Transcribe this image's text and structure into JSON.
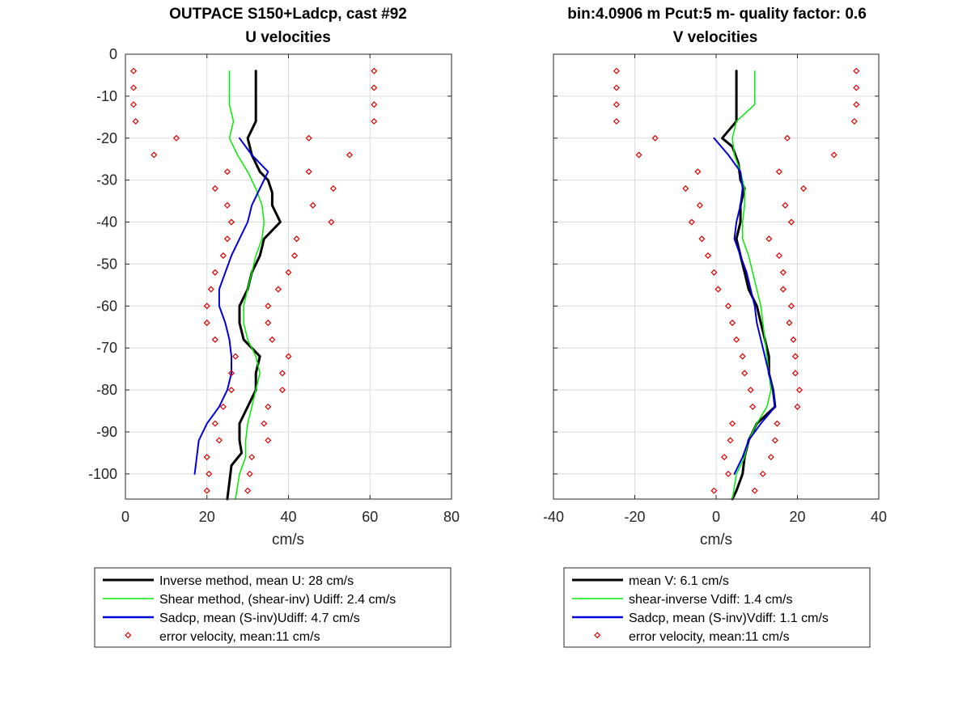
{
  "figure_title_left": "OUTPACE S150+Ladcp, cast #92",
  "figure_title_right": "bin:4.0906 m  Pcut:5 m- quality factor:  0.6",
  "colors": {
    "inverse": "#000000",
    "shear": "#00ee00",
    "sadcp": "#0000dd",
    "error": "#dd0000",
    "grid": "#dcdcdc",
    "axis": "#262626"
  },
  "chart_data": [
    {
      "type": "line",
      "title": "U velocities",
      "xlabel": "cm/s",
      "ylabel": "",
      "xlim": [
        0,
        80
      ],
      "ylim": [
        -106,
        0
      ],
      "xticks": [
        0,
        20,
        40,
        60,
        80
      ],
      "yticks": [
        0,
        -10,
        -20,
        -30,
        -40,
        -50,
        -60,
        -70,
        -80,
        -90,
        -100
      ],
      "grid": true,
      "legend_placement": "below",
      "legend": [
        "Inverse method, mean U:  28 cm/s",
        "Shear method, (shear-inv)  Udiff:  2.4 cm/s",
        "Sadcp, mean (S-inv)Udiff: 4.7 cm/s",
        "error velocity, mean:11 cm/s"
      ],
      "series": [
        {
          "key": "inverse",
          "points": [
            [
              32,
              -4
            ],
            [
              32,
              -16
            ],
            [
              30,
              -20
            ],
            [
              31,
              -24
            ],
            [
              33,
              -28
            ],
            [
              35,
              -30
            ],
            [
              36,
              -33
            ],
            [
              36,
              -36
            ],
            [
              38,
              -40
            ],
            [
              34,
              -44
            ],
            [
              33,
              -48
            ],
            [
              31,
              -52
            ],
            [
              30,
              -56
            ],
            [
              28,
              -60
            ],
            [
              28,
              -64
            ],
            [
              29,
              -68
            ],
            [
              33,
              -72
            ],
            [
              32,
              -76
            ],
            [
              32,
              -80
            ],
            [
              30,
              -84
            ],
            [
              28,
              -88
            ],
            [
              28,
              -92
            ],
            [
              28.5,
              -95
            ],
            [
              26,
              -98
            ],
            [
              25.5,
              -102
            ],
            [
              25,
              -106
            ]
          ]
        },
        {
          "key": "shear",
          "points": [
            [
              25.5,
              -4
            ],
            [
              25.5,
              -12
            ],
            [
              26.5,
              -16
            ],
            [
              25.5,
              -20
            ],
            [
              27.5,
              -24
            ],
            [
              30,
              -28
            ],
            [
              32,
              -32
            ],
            [
              33.5,
              -36
            ],
            [
              34,
              -40
            ],
            [
              33.5,
              -44
            ],
            [
              32,
              -48
            ],
            [
              31,
              -52
            ],
            [
              30,
              -56
            ],
            [
              29,
              -60
            ],
            [
              29,
              -64
            ],
            [
              30,
              -68
            ],
            [
              32,
              -72
            ],
            [
              33,
              -76
            ],
            [
              32,
              -80
            ],
            [
              31,
              -84
            ],
            [
              30,
              -88
            ],
            [
              29.5,
              -92
            ],
            [
              29.5,
              -96
            ],
            [
              28,
              -100
            ],
            [
              27,
              -106
            ]
          ]
        },
        {
          "key": "sadcp",
          "points": [
            [
              28,
              -20
            ],
            [
              31,
              -24
            ],
            [
              35,
              -28
            ],
            [
              33,
              -32
            ],
            [
              31,
              -36
            ],
            [
              30,
              -40
            ],
            [
              28,
              -44
            ],
            [
              26,
              -48
            ],
            [
              24.5,
              -52
            ],
            [
              23,
              -56
            ],
            [
              23,
              -60
            ],
            [
              24.5,
              -64
            ],
            [
              25.5,
              -68
            ],
            [
              26,
              -72
            ],
            [
              26,
              -76
            ],
            [
              25,
              -80
            ],
            [
              23,
              -84
            ],
            [
              20,
              -88
            ],
            [
              18,
              -92
            ],
            [
              17,
              -100
            ]
          ]
        },
        {
          "key": "error_low",
          "marker": "diamond",
          "points": [
            [
              2,
              -4
            ],
            [
              2,
              -8
            ],
            [
              2,
              -12
            ],
            [
              2.5,
              -16
            ],
            [
              12.5,
              -20
            ],
            [
              7,
              -24
            ],
            [
              25,
              -28
            ],
            [
              22,
              -32
            ],
            [
              25,
              -36
            ],
            [
              26,
              -40
            ],
            [
              25,
              -44
            ],
            [
              24,
              -48
            ],
            [
              22,
              -52
            ],
            [
              21,
              -56
            ],
            [
              20,
              -60
            ],
            [
              20,
              -64
            ],
            [
              22,
              -68
            ],
            [
              27,
              -72
            ],
            [
              26,
              -76
            ],
            [
              26,
              -80
            ],
            [
              24,
              -84
            ],
            [
              22,
              -88
            ],
            [
              23,
              -92
            ],
            [
              20,
              -96
            ],
            [
              20.5,
              -100
            ],
            [
              20,
              -104
            ]
          ]
        },
        {
          "key": "error_high",
          "marker": "diamond",
          "points": [
            [
              61,
              -4
            ],
            [
              61,
              -8
            ],
            [
              61,
              -12
            ],
            [
              61,
              -16
            ],
            [
              45,
              -20
            ],
            [
              55,
              -24
            ],
            [
              45,
              -28
            ],
            [
              51,
              -32
            ],
            [
              46,
              -36
            ],
            [
              50.5,
              -40
            ],
            [
              42,
              -44
            ],
            [
              41.5,
              -48
            ],
            [
              40,
              -52
            ],
            [
              37.5,
              -56
            ],
            [
              35,
              -60
            ],
            [
              35,
              -64
            ],
            [
              36,
              -68
            ],
            [
              40,
              -72
            ],
            [
              38.5,
              -76
            ],
            [
              38.5,
              -80
            ],
            [
              35,
              -84
            ],
            [
              34,
              -88
            ],
            [
              35,
              -92
            ],
            [
              31,
              -96
            ],
            [
              30.5,
              -100
            ],
            [
              30,
              -104
            ]
          ]
        }
      ]
    },
    {
      "type": "line",
      "title": "V velocities",
      "xlabel": "cm/s",
      "ylabel": "",
      "xlim": [
        -40,
        40
      ],
      "ylim": [
        -106,
        0
      ],
      "xticks": [
        -40,
        -20,
        0,
        20,
        40
      ],
      "yticks": [
        0,
        -10,
        -20,
        -30,
        -40,
        -50,
        -60,
        -70,
        -80,
        -90,
        -100
      ],
      "grid": true,
      "legend_placement": "below",
      "legend": [
        "mean V:  6.1 cm/s",
        "shear-inverse Vdiff:  1.4 cm/s",
        "Sadcp, mean (S-inv)Vdiff: 1.1 cm/s",
        "error velocity, mean:11 cm/s"
      ],
      "series": [
        {
          "key": "inverse",
          "points": [
            [
              5,
              -4
            ],
            [
              5,
              -16
            ],
            [
              1.5,
              -20
            ],
            [
              4,
              -22
            ],
            [
              5.5,
              -26
            ],
            [
              6,
              -30
            ],
            [
              7,
              -32
            ],
            [
              6,
              -36
            ],
            [
              6,
              -40
            ],
            [
              5,
              -44
            ],
            [
              6,
              -48
            ],
            [
              7,
              -52
            ],
            [
              8,
              -56
            ],
            [
              10,
              -60
            ],
            [
              11,
              -64
            ],
            [
              12,
              -68
            ],
            [
              13,
              -72
            ],
            [
              13,
              -76
            ],
            [
              14,
              -80
            ],
            [
              14.5,
              -84
            ],
            [
              10,
              -88
            ],
            [
              8,
              -92
            ],
            [
              7,
              -96
            ],
            [
              6.5,
              -100
            ],
            [
              5,
              -104
            ],
            [
              4,
              -106
            ]
          ]
        },
        {
          "key": "shear",
          "points": [
            [
              9.5,
              -4
            ],
            [
              9.5,
              -12
            ],
            [
              5,
              -16
            ],
            [
              4,
              -20
            ],
            [
              4.5,
              -24
            ],
            [
              6,
              -28
            ],
            [
              7,
              -32
            ],
            [
              7,
              -36
            ],
            [
              6.5,
              -40
            ],
            [
              6.5,
              -44
            ],
            [
              8,
              -48
            ],
            [
              9,
              -52
            ],
            [
              10,
              -56
            ],
            [
              11,
              -60
            ],
            [
              11.5,
              -64
            ],
            [
              12,
              -68
            ],
            [
              12.5,
              -72
            ],
            [
              13,
              -76
            ],
            [
              13.5,
              -80
            ],
            [
              12.5,
              -84
            ],
            [
              10,
              -88
            ],
            [
              8,
              -92
            ],
            [
              7,
              -96
            ],
            [
              5,
              -100
            ],
            [
              4.5,
              -103
            ],
            [
              4,
              -106
            ]
          ]
        },
        {
          "key": "sadcp",
          "points": [
            [
              -0.5,
              -20
            ],
            [
              3,
              -24
            ],
            [
              6,
              -28
            ],
            [
              6.5,
              -32
            ],
            [
              6,
              -36
            ],
            [
              5,
              -40
            ],
            [
              4.5,
              -44
            ],
            [
              6,
              -48
            ],
            [
              7.5,
              -52
            ],
            [
              8.5,
              -56
            ],
            [
              9.5,
              -60
            ],
            [
              10,
              -64
            ],
            [
              11,
              -68
            ],
            [
              12,
              -72
            ],
            [
              13,
              -76
            ],
            [
              14,
              -80
            ],
            [
              14.5,
              -84
            ],
            [
              11,
              -88
            ],
            [
              8,
              -92
            ],
            [
              6.5,
              -96
            ],
            [
              4.5,
              -100
            ]
          ]
        },
        {
          "key": "error_low",
          "marker": "diamond",
          "points": [
            [
              -24.5,
              -4
            ],
            [
              -24.5,
              -8
            ],
            [
              -24.5,
              -12
            ],
            [
              -24.5,
              -16
            ],
            [
              -15,
              -20
            ],
            [
              -19,
              -24
            ],
            [
              -4.5,
              -28
            ],
            [
              -7.5,
              -32
            ],
            [
              -4,
              -36
            ],
            [
              -6,
              -40
            ],
            [
              -3.5,
              -44
            ],
            [
              -2,
              -48
            ],
            [
              -0.5,
              -52
            ],
            [
              0.5,
              -56
            ],
            [
              3,
              -60
            ],
            [
              4,
              -64
            ],
            [
              5,
              -68
            ],
            [
              6.5,
              -72
            ],
            [
              7,
              -76
            ],
            [
              8.5,
              -80
            ],
            [
              9,
              -84
            ],
            [
              4,
              -88
            ],
            [
              3.5,
              -92
            ],
            [
              2,
              -96
            ],
            [
              3,
              -100
            ],
            [
              -0.5,
              -104
            ]
          ]
        },
        {
          "key": "error_high",
          "marker": "diamond",
          "points": [
            [
              34.5,
              -4
            ],
            [
              34.5,
              -8
            ],
            [
              34.5,
              -12
            ],
            [
              34,
              -16
            ],
            [
              17.5,
              -20
            ],
            [
              29,
              -24
            ],
            [
              15.5,
              -28
            ],
            [
              21.5,
              -32
            ],
            [
              17,
              -36
            ],
            [
              18.5,
              -40
            ],
            [
              13,
              -44
            ],
            [
              15.5,
              -48
            ],
            [
              16.5,
              -52
            ],
            [
              16.5,
              -56
            ],
            [
              18.5,
              -60
            ],
            [
              18,
              -64
            ],
            [
              19,
              -68
            ],
            [
              19.5,
              -72
            ],
            [
              19.5,
              -76
            ],
            [
              20.5,
              -80
            ],
            [
              20,
              -84
            ],
            [
              15,
              -88
            ],
            [
              14.5,
              -92
            ],
            [
              13.5,
              -96
            ],
            [
              11.5,
              -100
            ],
            [
              9.5,
              -104
            ]
          ]
        }
      ]
    }
  ]
}
